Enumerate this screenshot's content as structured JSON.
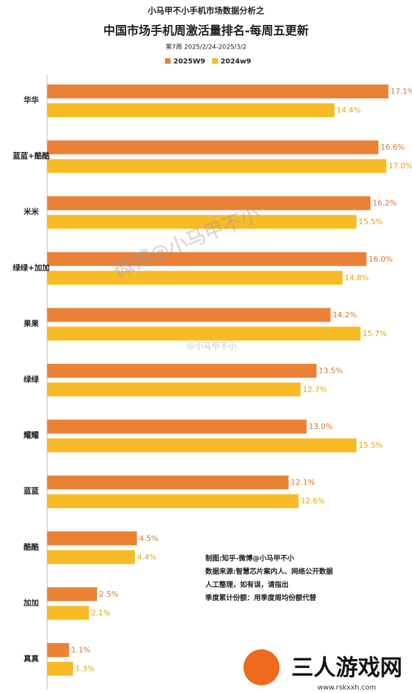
{
  "chart_data": {
    "type": "bar",
    "orientation": "horizontal",
    "supertitle": "小马甲不小手机市场数据分析之",
    "title": "中国市场手机周激活量排名-每周五更新",
    "subtitle": "第7周 2025/2/24-2025/3/2",
    "categories": [
      "华华",
      "蓝蓝+酷酷",
      "米米",
      "绿绿+加加",
      "果果",
      "绿绿",
      "耀耀",
      "蓝蓝",
      "酷酷",
      "加加",
      "真真"
    ],
    "series": [
      {
        "name": "2025W9",
        "color": "#ea8136",
        "values": [
          17.1,
          16.6,
          16.2,
          16.0,
          14.2,
          13.5,
          13.0,
          12.1,
          4.5,
          2.5,
          1.1
        ],
        "value_labels": [
          "17.1%",
          "16.6%",
          "16.2%",
          "16.0%",
          "14.2%",
          "13.5%",
          "13.0%",
          "12.1%",
          "4.5%",
          "2.5%",
          "1.1%"
        ]
      },
      {
        "name": "2024w9",
        "color": "#f8bb26",
        "values": [
          14.4,
          17.0,
          15.5,
          14.8,
          15.7,
          12.7,
          15.5,
          12.6,
          4.4,
          2.1,
          1.3
        ],
        "value_labels": [
          "14.4%",
          "17.0%",
          "15.5%",
          "14.8%",
          "15.7%",
          "12.7%",
          "15.5%",
          "12.6%",
          "4.4%",
          "2.1%",
          "1.3%"
        ]
      }
    ],
    "annotations": [
      "制图:知乎-微博@小马甲不小",
      "数据来源:智慧芯片案内人、网络公开数据",
      "人工整理，如有误，请指出",
      "季度累计份额：用季度周均份额代替"
    ],
    "watermarks": [
      "微博@小马甲不小",
      "@小马甲不小",
      "三人游戏网",
      "www.rskxxh.com"
    ]
  }
}
